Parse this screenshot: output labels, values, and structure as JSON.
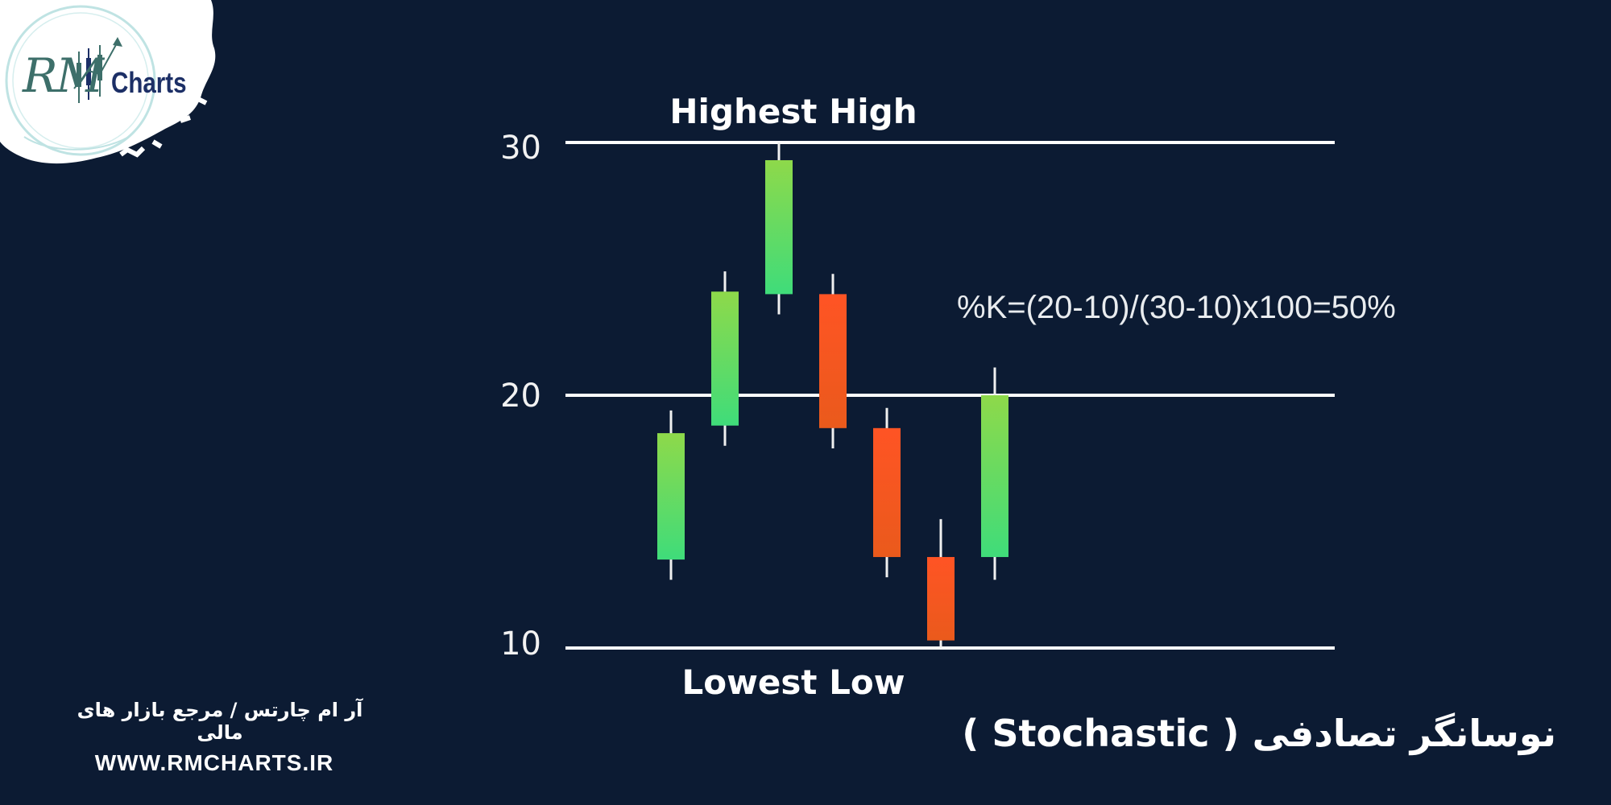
{
  "brand": {
    "logo_script": "RM",
    "logo_word": "Charts",
    "colors": {
      "background": "#0c1b33",
      "logo_bg": "#ffffff",
      "logo_ring": "#bfe3e3",
      "logo_navy": "#1c2f66",
      "logo_teal": "#3d6f6a"
    }
  },
  "footer": {
    "tagline_fa": "آر ام چارتس / مرجع بازار های مالی",
    "url": "WWW.RMCHARTS.IR"
  },
  "page_title": "نوسانگر تصادفی ( Stochastic )",
  "chart_data": {
    "type": "candlestick",
    "title": "",
    "ylim": [
      10,
      30
    ],
    "y_ticks": [
      10,
      20,
      30
    ],
    "y_tick_labels": [
      "10",
      "20",
      "30"
    ],
    "reference_lines": [
      {
        "y": 30,
        "label": "Highest High"
      },
      {
        "y": 20,
        "label": ""
      },
      {
        "y": 10,
        "label": "Lowest Low"
      }
    ],
    "annotation": "%K=(20-10)/(30-10)x100=50%",
    "candles": [
      {
        "open": 13.5,
        "close": 18.5,
        "high": 19.4,
        "low": 12.7,
        "direction": "up"
      },
      {
        "open": 18.8,
        "close": 24.1,
        "high": 24.9,
        "low": 18.0,
        "direction": "up"
      },
      {
        "open": 24.0,
        "close": 29.3,
        "high": 30.0,
        "low": 23.2,
        "direction": "up"
      },
      {
        "open": 24.0,
        "close": 18.7,
        "high": 24.8,
        "low": 17.9,
        "direction": "down"
      },
      {
        "open": 18.7,
        "close": 13.6,
        "high": 19.5,
        "low": 12.8,
        "direction": "down"
      },
      {
        "open": 13.6,
        "close": 10.3,
        "high": 15.1,
        "low": 10.0,
        "direction": "down"
      },
      {
        "open": 13.6,
        "close": 20.0,
        "high": 21.1,
        "low": 12.7,
        "direction": "up"
      }
    ],
    "colors": {
      "up_top": "#8ed94a",
      "up_bottom": "#3fdc7a",
      "down_top": "#ff5424",
      "down_bottom": "#ea5a1c",
      "wick": "#f0f0f0",
      "line": "#ffffff"
    }
  }
}
